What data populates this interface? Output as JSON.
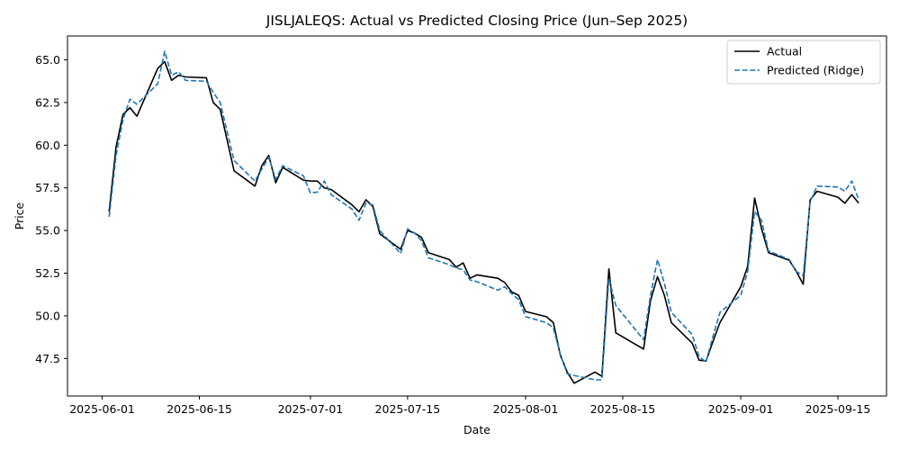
{
  "chart_data": {
    "type": "line",
    "title": "JISLJALEQS: Actual vs Predicted Closing Price (Jun–Sep 2025)",
    "xlabel": "Date",
    "ylabel": "Price",
    "xlim": [
      "2025-05-27",
      "2025-09-22"
    ],
    "ylim": [
      45.3,
      66.4
    ],
    "x_ticks": [
      "2025-06-01",
      "2025-06-15",
      "2025-07-01",
      "2025-07-15",
      "2025-08-01",
      "2025-08-15",
      "2025-09-01",
      "2025-09-15"
    ],
    "y_ticks": [
      47.5,
      50.0,
      52.5,
      55.0,
      57.5,
      60.0,
      62.5,
      65.0
    ],
    "y_tick_labels": [
      "47.5",
      "50.0",
      "52.5",
      "55.0",
      "57.5",
      "60.0",
      "62.5",
      "65.0"
    ],
    "grid": false,
    "legend_position": "top-right",
    "series": [
      {
        "name": "Actual",
        "color": "#000000",
        "style": "solid",
        "points": [
          [
            "2025-06-02",
            56.1
          ],
          [
            "2025-06-03",
            59.9
          ],
          [
            "2025-06-04",
            61.8
          ],
          [
            "2025-06-05",
            62.2
          ],
          [
            "2025-06-06",
            61.7
          ],
          [
            "2025-06-09",
            64.5
          ],
          [
            "2025-06-10",
            64.9
          ],
          [
            "2025-06-11",
            63.8
          ],
          [
            "2025-06-12",
            64.1
          ],
          [
            "2025-06-13",
            64.0
          ],
          [
            "2025-06-16",
            63.95
          ],
          [
            "2025-06-17",
            62.5
          ],
          [
            "2025-06-18",
            62.1
          ],
          [
            "2025-06-19",
            60.3
          ],
          [
            "2025-06-20",
            58.5
          ],
          [
            "2025-06-23",
            57.6
          ],
          [
            "2025-06-24",
            58.8
          ],
          [
            "2025-06-25",
            59.4
          ],
          [
            "2025-06-26",
            57.8
          ],
          [
            "2025-06-27",
            58.7
          ],
          [
            "2025-06-30",
            57.95
          ],
          [
            "2025-07-01",
            57.9
          ],
          [
            "2025-07-02",
            57.9
          ],
          [
            "2025-07-03",
            57.5
          ],
          [
            "2025-07-04",
            57.4
          ],
          [
            "2025-07-07",
            56.5
          ],
          [
            "2025-07-08",
            56.1
          ],
          [
            "2025-07-09",
            56.8
          ],
          [
            "2025-07-10",
            56.4
          ],
          [
            "2025-07-11",
            54.8
          ],
          [
            "2025-07-14",
            53.9
          ],
          [
            "2025-07-15",
            55.0
          ],
          [
            "2025-07-16",
            54.85
          ],
          [
            "2025-07-17",
            54.6
          ],
          [
            "2025-07-18",
            53.7
          ],
          [
            "2025-07-21",
            53.3
          ],
          [
            "2025-07-22",
            52.85
          ],
          [
            "2025-07-23",
            53.1
          ],
          [
            "2025-07-24",
            52.2
          ],
          [
            "2025-07-25",
            52.4
          ],
          [
            "2025-07-28",
            52.2
          ],
          [
            "2025-07-29",
            51.95
          ],
          [
            "2025-07-30",
            51.4
          ],
          [
            "2025-07-31",
            51.2
          ],
          [
            "2025-08-01",
            50.25
          ],
          [
            "2025-08-04",
            49.95
          ],
          [
            "2025-08-05",
            49.6
          ],
          [
            "2025-08-06",
            47.7
          ],
          [
            "2025-08-07",
            46.7
          ],
          [
            "2025-08-08",
            46.05
          ],
          [
            "2025-08-11",
            46.7
          ],
          [
            "2025-08-12",
            46.45
          ],
          [
            "2025-08-13",
            52.75
          ],
          [
            "2025-08-14",
            49.0
          ],
          [
            "2025-08-18",
            48.05
          ],
          [
            "2025-08-19",
            50.9
          ],
          [
            "2025-08-20",
            52.3
          ],
          [
            "2025-08-21",
            51.2
          ],
          [
            "2025-08-22",
            49.6
          ],
          [
            "2025-08-25",
            48.4
          ],
          [
            "2025-08-26",
            47.4
          ],
          [
            "2025-08-27",
            47.35
          ],
          [
            "2025-08-28",
            48.5
          ],
          [
            "2025-08-29",
            49.6
          ],
          [
            "2025-09-01",
            51.7
          ],
          [
            "2025-09-02",
            52.9
          ],
          [
            "2025-09-03",
            56.9
          ],
          [
            "2025-09-04",
            55.1
          ],
          [
            "2025-09-05",
            53.7
          ],
          [
            "2025-09-08",
            53.25
          ],
          [
            "2025-09-09",
            52.6
          ],
          [
            "2025-09-10",
            51.85
          ],
          [
            "2025-09-11",
            56.8
          ],
          [
            "2025-09-12",
            57.3
          ],
          [
            "2025-09-15",
            56.95
          ],
          [
            "2025-09-16",
            56.6
          ],
          [
            "2025-09-17",
            57.1
          ],
          [
            "2025-09-18",
            56.6
          ]
        ]
      },
      {
        "name": "Predicted (Ridge)",
        "color": "#1f77b4",
        "style": "dashed",
        "points": [
          [
            "2025-06-02",
            55.8
          ],
          [
            "2025-06-03",
            59.4
          ],
          [
            "2025-06-04",
            61.5
          ],
          [
            "2025-06-05",
            62.7
          ],
          [
            "2025-06-06",
            62.4
          ],
          [
            "2025-06-09",
            63.6
          ],
          [
            "2025-06-10",
            65.5
          ],
          [
            "2025-06-11",
            64.1
          ],
          [
            "2025-06-12",
            64.3
          ],
          [
            "2025-06-13",
            63.8
          ],
          [
            "2025-06-16",
            63.75
          ],
          [
            "2025-06-17",
            63.1
          ],
          [
            "2025-06-18",
            62.5
          ],
          [
            "2025-06-19",
            60.8
          ],
          [
            "2025-06-20",
            59.1
          ],
          [
            "2025-06-23",
            57.9
          ],
          [
            "2025-06-24",
            58.6
          ],
          [
            "2025-06-25",
            59.3
          ],
          [
            "2025-06-26",
            58.0
          ],
          [
            "2025-06-27",
            58.8
          ],
          [
            "2025-06-30",
            58.2
          ],
          [
            "2025-07-01",
            57.2
          ],
          [
            "2025-07-02",
            57.25
          ],
          [
            "2025-07-03",
            57.9
          ],
          [
            "2025-07-04",
            57.1
          ],
          [
            "2025-07-07",
            56.25
          ],
          [
            "2025-07-08",
            55.6
          ],
          [
            "2025-07-09",
            56.6
          ],
          [
            "2025-07-10",
            56.5
          ],
          [
            "2025-07-11",
            55.0
          ],
          [
            "2025-07-14",
            53.65
          ],
          [
            "2025-07-15",
            55.1
          ],
          [
            "2025-07-16",
            54.85
          ],
          [
            "2025-07-17",
            54.4
          ],
          [
            "2025-07-18",
            53.4
          ],
          [
            "2025-07-21",
            53.0
          ],
          [
            "2025-07-22",
            52.8
          ],
          [
            "2025-07-23",
            52.7
          ],
          [
            "2025-07-24",
            52.1
          ],
          [
            "2025-07-25",
            52.0
          ],
          [
            "2025-07-28",
            51.5
          ],
          [
            "2025-07-29",
            51.7
          ],
          [
            "2025-07-30",
            51.3
          ],
          [
            "2025-07-31",
            50.95
          ],
          [
            "2025-08-01",
            49.95
          ],
          [
            "2025-08-04",
            49.6
          ],
          [
            "2025-08-05",
            49.3
          ],
          [
            "2025-08-06",
            47.75
          ],
          [
            "2025-08-07",
            46.6
          ],
          [
            "2025-08-08",
            46.5
          ],
          [
            "2025-08-11",
            46.25
          ],
          [
            "2025-08-12",
            46.25
          ],
          [
            "2025-08-13",
            52.2
          ],
          [
            "2025-08-14",
            50.6
          ],
          [
            "2025-08-18",
            48.6
          ],
          [
            "2025-08-19",
            51.2
          ],
          [
            "2025-08-20",
            53.3
          ],
          [
            "2025-08-21",
            51.9
          ],
          [
            "2025-08-22",
            50.2
          ],
          [
            "2025-08-25",
            48.9
          ],
          [
            "2025-08-26",
            47.6
          ],
          [
            "2025-08-27",
            47.3
          ],
          [
            "2025-08-28",
            48.8
          ],
          [
            "2025-08-29",
            50.2
          ],
          [
            "2025-09-01",
            51.2
          ],
          [
            "2025-09-02",
            52.6
          ],
          [
            "2025-09-03",
            56.1
          ],
          [
            "2025-09-04",
            55.6
          ],
          [
            "2025-09-05",
            53.8
          ],
          [
            "2025-09-08",
            53.3
          ],
          [
            "2025-09-09",
            52.6
          ],
          [
            "2025-09-10",
            52.35
          ],
          [
            "2025-09-11",
            56.7
          ],
          [
            "2025-09-12",
            57.6
          ],
          [
            "2025-09-15",
            57.55
          ],
          [
            "2025-09-16",
            57.3
          ],
          [
            "2025-09-17",
            57.9
          ],
          [
            "2025-09-18",
            56.8
          ]
        ]
      }
    ]
  }
}
